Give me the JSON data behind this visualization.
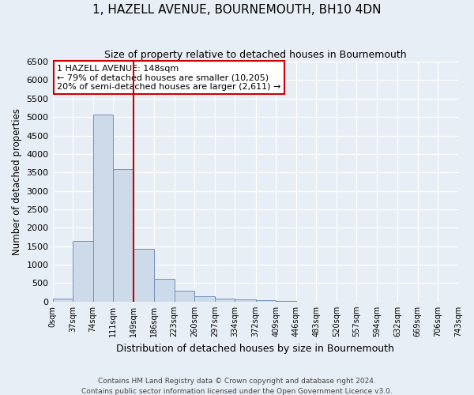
{
  "title": "1, HAZELL AVENUE, BOURNEMOUTH, BH10 4DN",
  "subtitle": "Size of property relative to detached houses in Bournemouth",
  "xlabel": "Distribution of detached houses by size in Bournemouth",
  "ylabel": "Number of detached properties",
  "footer_line1": "Contains HM Land Registry data © Crown copyright and database right 2024.",
  "footer_line2": "Contains public sector information licensed under the Open Government Licence v3.0.",
  "property_size": 148,
  "property_label": "1 HAZELL AVENUE: 148sqm",
  "annotation_line1": "← 79% of detached houses are smaller (10,205)",
  "annotation_line2": "20% of semi-detached houses are larger (2,611) →",
  "bar_color": "#cddaea",
  "bar_edge_color": "#7090be",
  "vline_color": "#cc0000",
  "annotation_box_edgecolor": "#cc0000",
  "ylim": [
    0,
    6500
  ],
  "bin_edges": [
    0,
    37,
    74,
    111,
    148,
    186,
    223,
    260,
    297,
    334,
    372,
    409,
    446,
    483,
    520,
    557,
    594,
    632,
    669,
    706,
    743
  ],
  "bar_heights": [
    75,
    1650,
    5075,
    3600,
    1425,
    610,
    300,
    155,
    80,
    50,
    40,
    20,
    5,
    0,
    0,
    0,
    0,
    0,
    0,
    0
  ],
  "tick_labels": [
    "0sqm",
    "37sqm",
    "74sqm",
    "111sqm",
    "149sqm",
    "186sqm",
    "223sqm",
    "260sqm",
    "297sqm",
    "334sqm",
    "372sqm",
    "409sqm",
    "446sqm",
    "483sqm",
    "520sqm",
    "557sqm",
    "594sqm",
    "632sqm",
    "669sqm",
    "706sqm",
    "743sqm"
  ],
  "background_color": "#e8eef5",
  "plot_bg_color": "#e8eef5",
  "grid_color": "#ffffff",
  "yticks": [
    0,
    500,
    1000,
    1500,
    2000,
    2500,
    3000,
    3500,
    4000,
    4500,
    5000,
    5500,
    6000,
    6500
  ]
}
